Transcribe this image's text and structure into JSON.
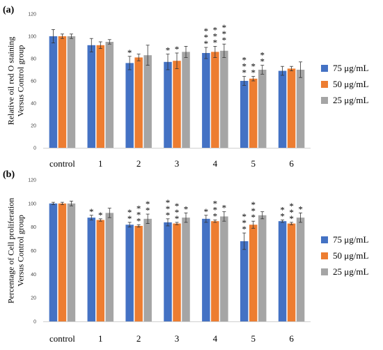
{
  "chart_data": [
    {
      "type": "bar",
      "panel": "(a)",
      "ylabel": "Relative oil red O staining Versus Control group",
      "ylim": [
        0,
        120
      ],
      "yticks": [
        0,
        20,
        40,
        60,
        80,
        100,
        120
      ],
      "categories": [
        "control",
        "1",
        "2",
        "3",
        "4",
        "5",
        "6"
      ],
      "series": [
        {
          "name": "75 μg/mL",
          "color": "#4472c4",
          "values": [
            100,
            92,
            76,
            77,
            85,
            60,
            69
          ],
          "errors": [
            6,
            6,
            6,
            7,
            5,
            4,
            4
          ],
          "stars": [
            0,
            0,
            1,
            1,
            3,
            3,
            0
          ]
        },
        {
          "name": "50 μg/mL",
          "color": "#ed7d31",
          "values": [
            100,
            92,
            81,
            78,
            86,
            62,
            71
          ],
          "errors": [
            2,
            3,
            3,
            7,
            5,
            2,
            2
          ],
          "stars": [
            0,
            0,
            0,
            1,
            3,
            2,
            0
          ]
        },
        {
          "name": "25 μg/mL",
          "color": "#a5a5a5",
          "values": [
            100,
            95,
            83,
            86,
            87,
            70,
            70
          ],
          "errors": [
            2,
            2,
            9,
            5,
            6,
            4,
            7
          ],
          "stars": [
            0,
            0,
            0,
            0,
            3,
            2,
            0
          ]
        }
      ]
    },
    {
      "type": "bar",
      "panel": "(b)",
      "ylabel": "Percentage of Cell proliferation Versus Control group",
      "ylim": [
        0,
        120
      ],
      "yticks": [
        0,
        20,
        40,
        60,
        80,
        100,
        120
      ],
      "categories": [
        "control",
        "1",
        "2",
        "3",
        "4",
        "5",
        "6"
      ],
      "series": [
        {
          "name": "75 μg/mL",
          "color": "#4472c4",
          "values": [
            100,
            88,
            82,
            84,
            87,
            68,
            85
          ],
          "errors": [
            1,
            2,
            2,
            3,
            3,
            7,
            1
          ],
          "stars": [
            0,
            1,
            2,
            3,
            1,
            3,
            2
          ]
        },
        {
          "name": "50 μg/mL",
          "color": "#ed7d31",
          "values": [
            100,
            86,
            81,
            83,
            85,
            82,
            83
          ],
          "errors": [
            1,
            1,
            1,
            1,
            1,
            3,
            1
          ],
          "stars": [
            0,
            1,
            3,
            3,
            3,
            3,
            3
          ]
        },
        {
          "name": "25 μg/mL",
          "color": "#a5a5a5",
          "values": [
            100,
            92,
            87,
            88,
            89,
            90,
            88
          ],
          "errors": [
            2,
            4,
            4,
            4,
            4,
            3,
            4
          ],
          "stars": [
            0,
            0,
            2,
            1,
            1,
            0,
            1
          ]
        }
      ]
    }
  ]
}
